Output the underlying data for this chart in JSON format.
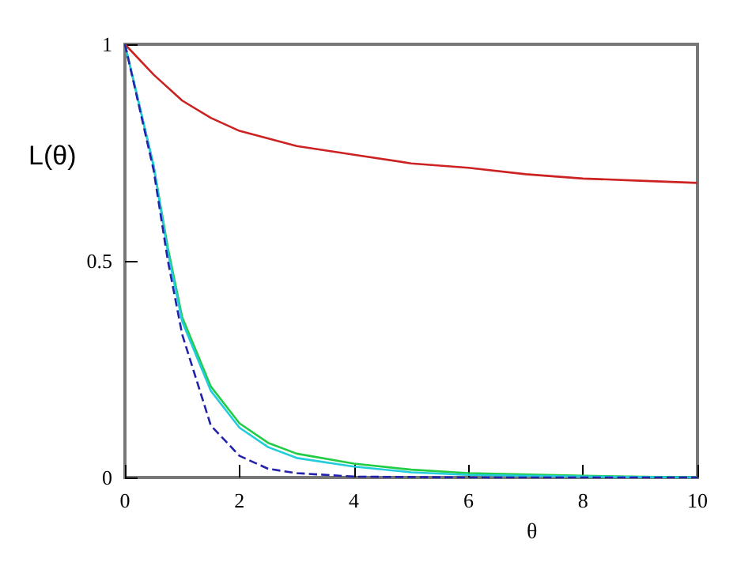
{
  "chart_data": {
    "type": "line",
    "xlabel": "θ",
    "ylabel": "L(θ)",
    "xlim": [
      0,
      10
    ],
    "xticks": [
      0,
      2,
      4,
      6,
      8,
      10
    ],
    "ylim": [
      0,
      1
    ],
    "yticks": [
      0,
      0.5,
      1
    ],
    "grid": false,
    "series": [
      {
        "color": "#cc2222",
        "line_style": "solid",
        "x": [
          0,
          0.5,
          1,
          1.5,
          2,
          3,
          4,
          5,
          6,
          7,
          8,
          9,
          10
        ],
        "values": [
          1,
          0.93,
          0.87,
          0.83,
          0.8,
          0.765,
          0.745,
          0.725,
          0.715,
          0.7,
          0.69,
          0.685,
          0.68
        ]
      },
      {
        "color": "#22cc44",
        "line_style": "solid",
        "x": [
          0,
          0.5,
          0.75,
          1,
          1.5,
          2,
          2.5,
          3,
          4,
          5,
          6,
          8,
          10
        ],
        "values": [
          1,
          0.72,
          0.53,
          0.37,
          0.21,
          0.125,
          0.08,
          0.055,
          0.032,
          0.018,
          0.01,
          0.004,
          0
        ]
      },
      {
        "color": "#22ccdd",
        "line_style": "solid",
        "x": [
          0,
          0.5,
          0.75,
          1,
          1.5,
          2,
          2.5,
          3,
          4,
          5,
          6,
          8,
          10
        ],
        "values": [
          1,
          0.72,
          0.52,
          0.36,
          0.2,
          0.115,
          0.07,
          0.045,
          0.025,
          0.012,
          0.006,
          0.002,
          0
        ]
      },
      {
        "color": "#2222aa",
        "line_style": "dashed",
        "x": [
          0,
          0.5,
          0.75,
          1,
          1.5,
          2,
          2.5,
          3,
          4,
          6,
          10
        ],
        "values": [
          1,
          0.71,
          0.5,
          0.33,
          0.12,
          0.05,
          0.02,
          0.01,
          0.002,
          0,
          0
        ]
      }
    ]
  }
}
